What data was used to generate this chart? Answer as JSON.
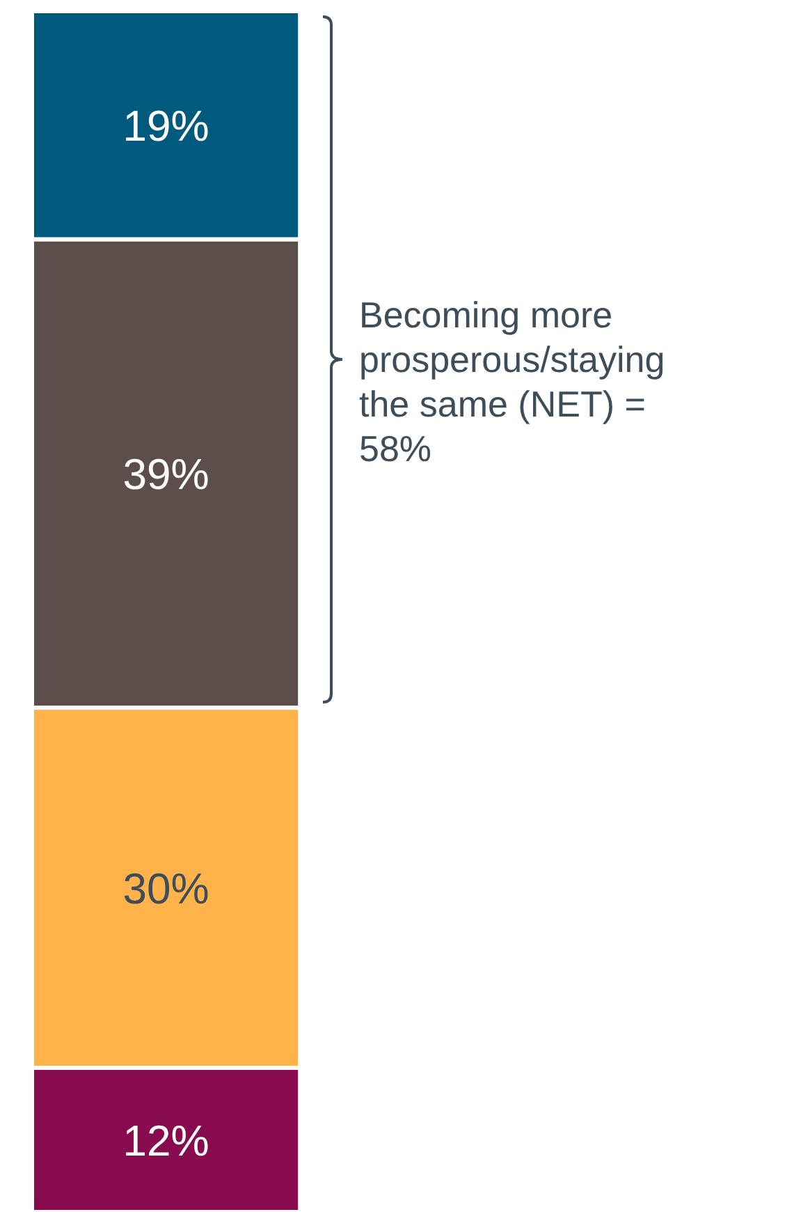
{
  "chart_data": {
    "type": "bar",
    "stacked": true,
    "categories": [
      null
    ],
    "series": [
      {
        "color": "#880b50",
        "values": [
          12
        ],
        "value_labels": [
          "12%"
        ]
      },
      {
        "color": "#ffb34a",
        "values": [
          30
        ],
        "value_labels": [
          "30%"
        ]
      },
      {
        "color": "#5c4f4b",
        "values": [
          39
        ],
        "value_labels": [
          "39%"
        ]
      },
      {
        "color": "#005a7e",
        "values": [
          19
        ],
        "value_labels": [
          "19%"
        ]
      }
    ],
    "annotations": [
      "Becoming more prosperous/staying the same (NET) = 58%"
    ]
  }
}
